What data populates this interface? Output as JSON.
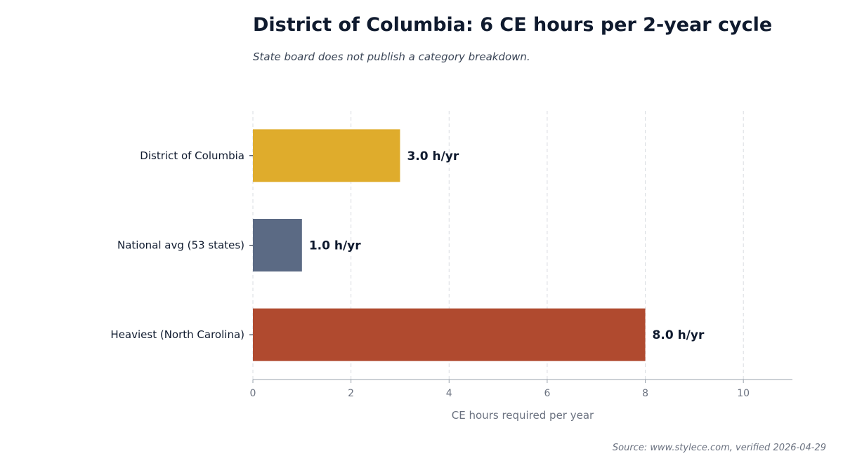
{
  "chart_data": {
    "type": "bar",
    "orientation": "horizontal",
    "title": "District of Columbia: 6 CE hours per 2-year cycle",
    "subtitle": "State board does not publish a category breakdown.",
    "categories": [
      "District of Columbia",
      "National avg (53 states)",
      "Heaviest (North Carolina)"
    ],
    "values": [
      3.0,
      1.0,
      8.0
    ],
    "value_labels": [
      "3.0 h/yr",
      "1.0 h/yr",
      "8.0 h/yr"
    ],
    "bar_colors": [
      "#dfac2c",
      "#5b6a84",
      "#b04a2f"
    ],
    "xlabel": "CE hours required per year",
    "ylabel": "",
    "xlim": [
      0,
      11
    ],
    "xticks": [
      "0",
      "2",
      "4",
      "6",
      "8",
      "10"
    ],
    "grid": "vertical dashed",
    "source": "Source: www.stylece.com, verified 2026-04-29"
  }
}
